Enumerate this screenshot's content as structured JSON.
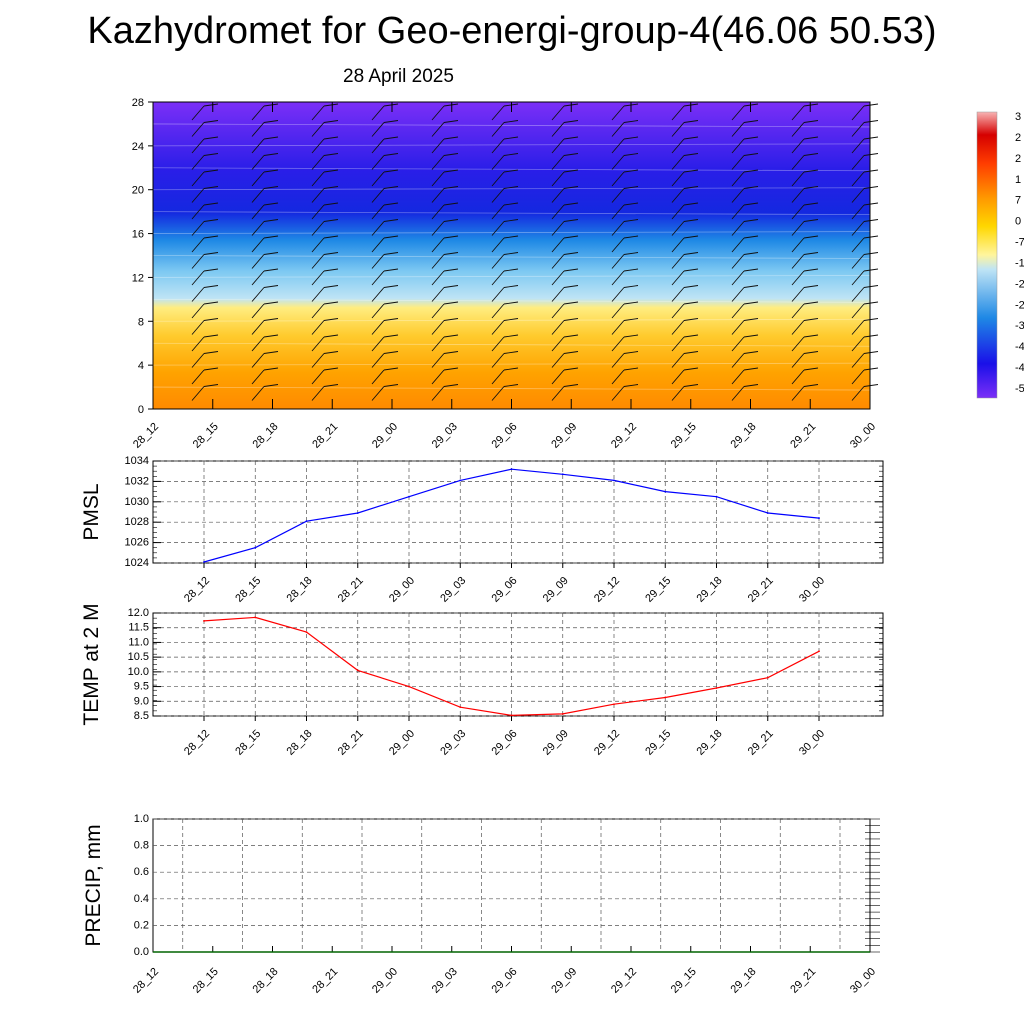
{
  "header": {
    "title": "Kazhydromet for Geo-energi-group-4(46.06 50.53)",
    "subtitle": "28 April 2025"
  },
  "chart_data": [
    {
      "type": "heatmap",
      "panel": "vertical-cross-section",
      "y_ticks": [
        "0",
        "4",
        "8",
        "12",
        "16",
        "20",
        "24",
        "28"
      ],
      "ylim": [
        0,
        28
      ],
      "x_ticks": [
        "28_12",
        "28_15",
        "28_18",
        "28_21",
        "29_00",
        "29_03",
        "29_06",
        "29_09",
        "29_12",
        "29_15",
        "29_18",
        "29_21",
        "30_00"
      ],
      "colorbar_labels": [
        "3",
        "2",
        "2",
        "1",
        "7",
        "0",
        "-7",
        "-1",
        "-2",
        "-2",
        "-3",
        "-4",
        "-4",
        "-5"
      ],
      "colors": [
        "#ff8c00",
        "#ffa500",
        "#ffd700",
        "#fff59d",
        "#b3e5fc",
        "#1e88e5",
        "#1010e8",
        "#7b2ff7"
      ]
    },
    {
      "type": "line",
      "ylabel": "PMSL",
      "ylim": [
        1024,
        1034
      ],
      "y_ticks": [
        "1024",
        "1026",
        "1028",
        "1030",
        "1032",
        "1034"
      ],
      "x": [
        "28_12",
        "28_15",
        "28_18",
        "28_21",
        "29_00",
        "29_03",
        "29_06",
        "29_09",
        "29_12",
        "29_15",
        "29_18",
        "29_21",
        "30_00"
      ],
      "values": [
        1024.1,
        1025.5,
        1028.1,
        1028.9,
        1030.5,
        1032.1,
        1033.2,
        1032.7,
        1032.1,
        1031.0,
        1030.5,
        1028.9,
        1028.4
      ],
      "color": "#0000ff"
    },
    {
      "type": "line",
      "ylabel": "TEMP at 2 M",
      "ylim": [
        8.5,
        12.0
      ],
      "y_ticks": [
        "8.5",
        "9.0",
        "9.5",
        "10.0",
        "10.5",
        "11.0",
        "11.5",
        "12.0"
      ],
      "x": [
        "28_12",
        "28_15",
        "28_18",
        "28_21",
        "29_00",
        "29_03",
        "29_06",
        "29_09",
        "29_12",
        "29_15",
        "29_18",
        "29_21",
        "30_00"
      ],
      "values": [
        11.73,
        11.85,
        11.35,
        10.05,
        9.5,
        8.8,
        8.52,
        8.57,
        8.9,
        9.13,
        9.45,
        9.8,
        10.7
      ],
      "color": "#ff0000"
    },
    {
      "type": "line",
      "ylabel": "PRECIP, mm",
      "ylim": [
        0.0,
        1.0
      ],
      "y_ticks": [
        "0.0",
        "0.2",
        "0.4",
        "0.6",
        "0.8",
        "1.0"
      ],
      "x_ticks": [
        "28_12",
        "28_15",
        "28_18",
        "28_21",
        "29_00",
        "29_03",
        "29_06",
        "29_09",
        "29_12",
        "29_15",
        "29_18",
        "29_21",
        "30_00"
      ],
      "values": [
        0,
        0,
        0,
        0,
        0,
        0,
        0,
        0,
        0,
        0,
        0,
        0,
        0
      ],
      "color": "#006400"
    }
  ]
}
